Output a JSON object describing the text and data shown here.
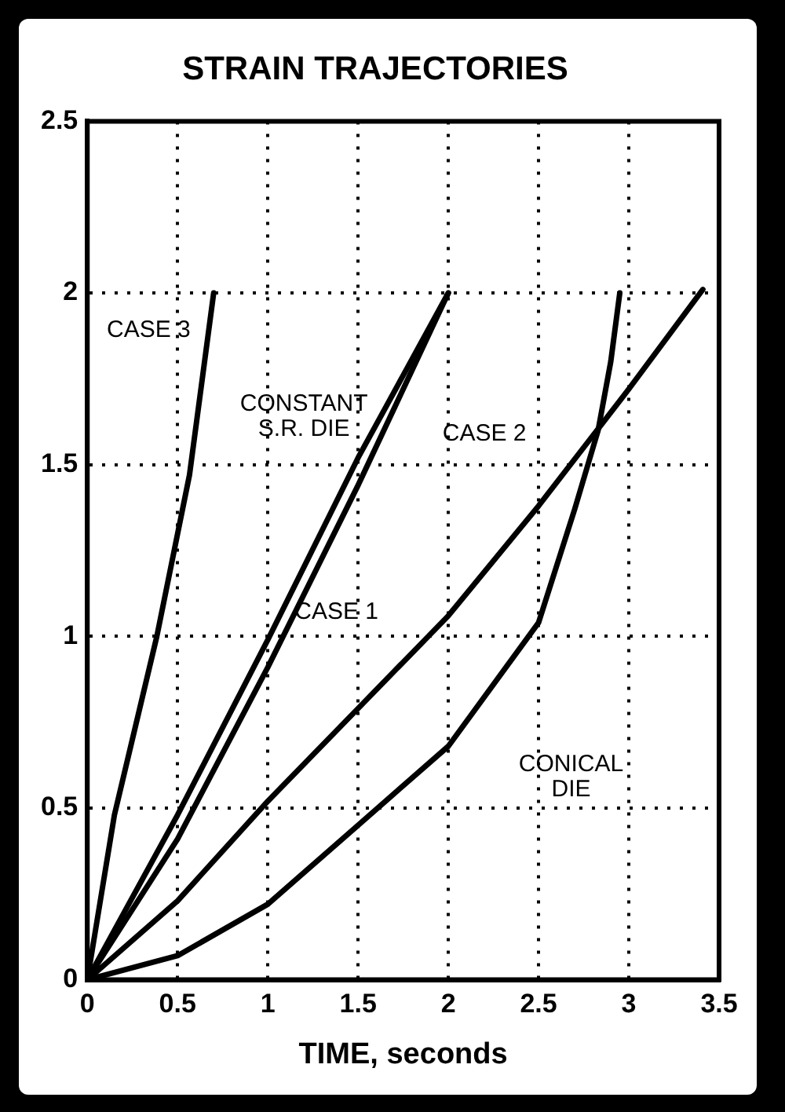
{
  "chart_data": {
    "type": "line",
    "title": "STRAIN TRAJECTORIES",
    "xlabel": "TIME, seconds",
    "xlim": [
      0,
      3.5
    ],
    "xticks": [
      0,
      0.5,
      1,
      1.5,
      2,
      2.5,
      3,
      3.5
    ],
    "ylim": [
      0,
      2.5
    ],
    "yticks": [
      0,
      0.5,
      1,
      1.5,
      2,
      2.5
    ],
    "grid": true,
    "legend": false,
    "marker": "none",
    "line_style": "solid",
    "series": [
      {
        "name": "CASE 3",
        "color": "#000000",
        "x": [
          0,
          0.15,
          0.385,
          0.566,
          0.7
        ],
        "values": [
          0,
          0.48,
          1,
          1.47,
          2
        ]
      },
      {
        "name": "CONSTANT S.R. DIE",
        "color": "#000000",
        "x": [
          0,
          0.5,
          1,
          1.5,
          2
        ],
        "values": [
          0,
          0.48,
          0.99,
          1.52,
          2
        ]
      },
      {
        "name": "CASE 1",
        "color": "#000000",
        "x": [
          0,
          0.5,
          1,
          1.5,
          2
        ],
        "values": [
          0,
          0.41,
          0.91,
          1.44,
          2
        ]
      },
      {
        "name": "CASE 2",
        "color": "#000000",
        "x": [
          0,
          0.5,
          1,
          1.5,
          2,
          2.5,
          3,
          3.41
        ],
        "values": [
          0,
          0.23,
          0.52,
          0.79,
          1.06,
          1.38,
          1.72,
          2.01
        ]
      },
      {
        "name": "CONICAL DIE",
        "color": "#000000",
        "x": [
          0,
          0.5,
          1,
          1.5,
          2,
          2.5,
          2.7,
          2.83,
          2.9,
          2.95
        ],
        "values": [
          0,
          0.07,
          0.22,
          0.45,
          0.68,
          1.04,
          1.37,
          1.6,
          1.8,
          2
        ]
      }
    ]
  }
}
